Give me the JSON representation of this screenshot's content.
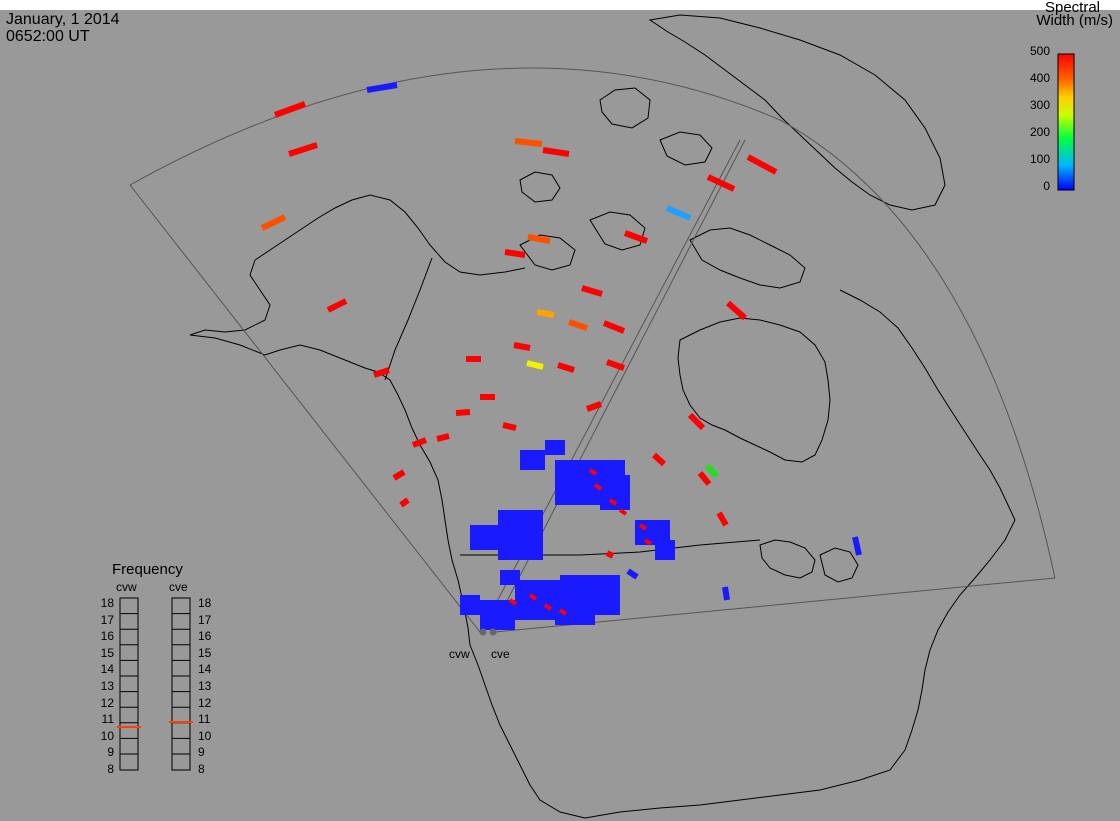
{
  "header": {
    "date": "January, 1 2014",
    "time": "0652:00 UT"
  },
  "colorbar": {
    "title_line1": "Spectral",
    "title_line2": "Width (m/s)",
    "ticks": [
      "500",
      "400",
      "300",
      "200",
      "100",
      "0"
    ],
    "colors": [
      "#0000ff",
      "#00b4ff",
      "#00ff80",
      "#80ff00",
      "#ffe000",
      "#ff9000",
      "#ff4000",
      "#ff0000"
    ]
  },
  "frequency_panel": {
    "title": "Frequency",
    "radars": [
      "cvw",
      "cve"
    ],
    "scale": [
      "18",
      "17",
      "16",
      "15",
      "14",
      "13",
      "12",
      "11",
      "10",
      "9",
      "8"
    ],
    "marker_color": "#ff4000"
  },
  "radar_sites": {
    "labels": [
      "cvw",
      "cve"
    ]
  },
  "colors": {
    "background": "#999999",
    "coastline": "#000000",
    "fov": "#555555",
    "site_marker": "#666666"
  }
}
